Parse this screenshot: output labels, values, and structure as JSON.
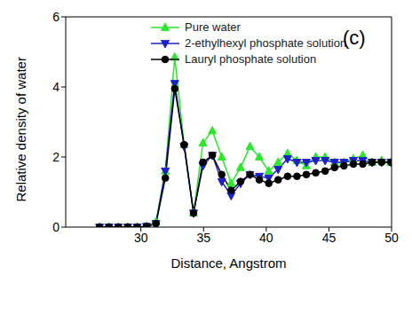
{
  "chart_data": {
    "type": "line",
    "annotation": "(c)",
    "x_label": "Distance, Angstrom",
    "y_label": "Relative density of water",
    "x": [
      26.7,
      27.45,
      28.2,
      28.95,
      29.7,
      30.45,
      31.2,
      31.95,
      32.7,
      33.45,
      34.2,
      34.95,
      35.7,
      36.45,
      37.2,
      37.95,
      38.7,
      39.45,
      40.2,
      40.95,
      41.7,
      42.45,
      43.2,
      43.95,
      44.7,
      45.45,
      46.2,
      46.95,
      47.7,
      48.45,
      49.2,
      49.95
    ],
    "series": [
      {
        "name": "Pure water",
        "color": "#2ee62e",
        "marker": "triangle-up",
        "values": [
          0,
          0,
          0,
          0,
          0,
          0.02,
          0.15,
          1.6,
          4.85,
          2.35,
          0.4,
          2.4,
          2.75,
          2.0,
          1.25,
          1.7,
          2.3,
          2.0,
          1.6,
          1.85,
          2.1,
          1.9,
          1.75,
          2.0,
          2.0,
          1.85,
          1.85,
          1.95,
          2.05,
          1.85,
          1.9,
          1.85
        ]
      },
      {
        "name": "2-ethylhexyl phosphate solution",
        "color": "#1f1fc8",
        "marker": "triangle-down",
        "values": [
          0,
          0,
          0,
          0,
          0,
          0.02,
          0.1,
          1.6,
          4.1,
          2.3,
          0.4,
          1.75,
          2.05,
          1.3,
          0.9,
          1.25,
          1.5,
          1.45,
          1.4,
          1.65,
          1.95,
          1.85,
          1.85,
          1.9,
          1.9,
          1.85,
          1.85,
          1.9,
          1.9,
          1.85,
          1.85,
          1.85
        ]
      },
      {
        "name": "Lauryl phosphate solution",
        "color": "#000000",
        "marker": "circle",
        "values": [
          0,
          0,
          0,
          0,
          0,
          0.02,
          0.1,
          1.4,
          3.95,
          2.35,
          0.4,
          1.85,
          2.05,
          1.5,
          1.05,
          1.3,
          1.5,
          1.35,
          1.25,
          1.35,
          1.45,
          1.45,
          1.5,
          1.55,
          1.6,
          1.7,
          1.75,
          1.8,
          1.8,
          1.85,
          1.85,
          1.85
        ]
      }
    ],
    "xlim": [
      24,
      50
    ],
    "xticks": [
      30,
      35,
      40,
      45,
      50
    ],
    "ylim": [
      0,
      6
    ],
    "yticks": [
      0,
      2,
      4,
      6
    ],
    "grid": false,
    "legend": "top"
  }
}
